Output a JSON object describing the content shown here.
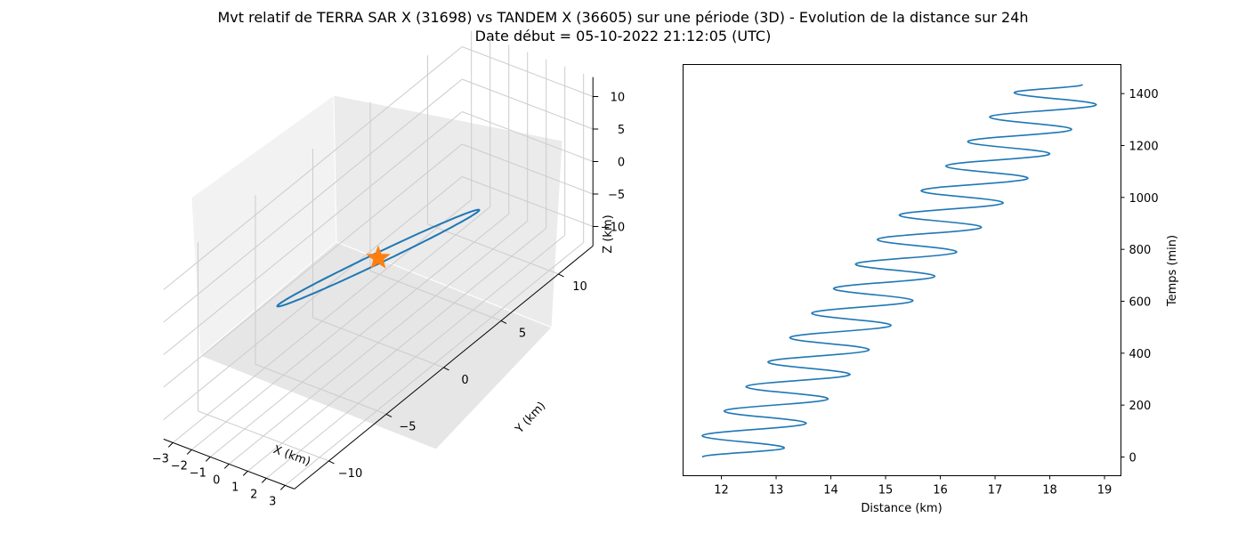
{
  "title_line1": "Mvt relatif de TERRA SAR X (31698) vs TANDEM X (36605) sur une période (3D) - Evolution de la distance sur 24h",
  "title_line2": "Date début = 05-10-2022 21:12:05 (UTC)",
  "chart_data": [
    {
      "type": "line3d",
      "xlabel": "X (km)",
      "ylabel": "Y (km)",
      "zlabel": "Z (km)",
      "xticks": [
        "−3",
        "−2",
        "−1",
        "0",
        "1",
        "2",
        "3"
      ],
      "yticks": [
        "−10",
        "−5",
        "0",
        "5",
        "10"
      ],
      "zticks": [
        "10",
        "5",
        "0",
        "−5",
        "−10"
      ],
      "xlim": [
        -3.5,
        3.5
      ],
      "ylim": [
        -13,
        13
      ],
      "zlim": [
        -13,
        13
      ],
      "grid": true,
      "series": [
        {
          "kind": "orbit",
          "color": "#1f77b4",
          "points": [
            [
              -2.0,
              12.0,
              -12.0
            ],
            [
              0,
              0,
              0
            ],
            [
              2.0,
              -12.0,
              12.0
            ],
            [
              0,
              0,
              0
            ]
          ]
        },
        {
          "kind": "marker-star",
          "color": "#ff7f0e",
          "points": [
            [
              0,
              0,
              0
            ]
          ]
        }
      ]
    },
    {
      "type": "line",
      "xlabel": "Distance (km)",
      "ylabel": "Temps (min)",
      "xlim": [
        11.3,
        19.3
      ],
      "ylim": [
        -72,
        1512
      ],
      "xticks": [
        12,
        13,
        14,
        15,
        16,
        17,
        18,
        19
      ],
      "yticks": [
        0,
        200,
        400,
        600,
        800,
        1000,
        1200,
        1400
      ],
      "grid": false,
      "series": [
        {
          "color": "#1f77b4",
          "x": [
            11.65,
            13.15,
            11.65,
            13.55,
            12.05,
            13.95,
            12.45,
            14.35,
            12.85,
            14.7,
            13.25,
            15.1,
            13.65,
            15.5,
            14.05,
            15.9,
            14.45,
            16.3,
            14.85,
            16.75,
            15.25,
            17.15,
            15.65,
            17.6,
            16.1,
            18.0,
            16.5,
            18.4,
            16.9,
            18.85,
            17.35,
            18.6
          ],
          "y": [
            0,
            35,
            82,
            130,
            177,
            224,
            271,
            318,
            366,
            413,
            460,
            507,
            554,
            602,
            649,
            696,
            743,
            790,
            838,
            885,
            932,
            979,
            1026,
            1074,
            1121,
            1168,
            1215,
            1262,
            1310,
            1357,
            1404,
            1435
          ]
        }
      ]
    }
  ]
}
